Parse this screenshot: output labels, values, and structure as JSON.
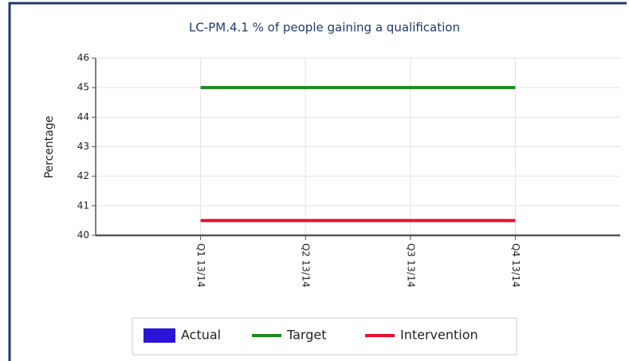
{
  "chart_data": {
    "type": "line",
    "title": "LC-PM.4.1 % of people gaining a qualification",
    "ylabel": "Percentage",
    "categories": [
      "Q1 13/14",
      "Q2 13/14",
      "Q3 13/14",
      "Q4 13/14"
    ],
    "series": [
      {
        "name": "Actual",
        "type": "bar",
        "color": "#2b14d6",
        "values": [
          null,
          null,
          null,
          null
        ]
      },
      {
        "name": "Target",
        "type": "line",
        "color": "#1e8a1e",
        "values": [
          45,
          45,
          45,
          45
        ]
      },
      {
        "name": "Intervention",
        "type": "line",
        "color": "#e8112d",
        "values": [
          40.5,
          40.5,
          40.5,
          40.5
        ]
      }
    ],
    "ylim": [
      40,
      46
    ],
    "yticks": [
      40,
      41,
      42,
      43,
      44,
      45,
      46
    ],
    "grid": true,
    "legend": "bottom"
  }
}
